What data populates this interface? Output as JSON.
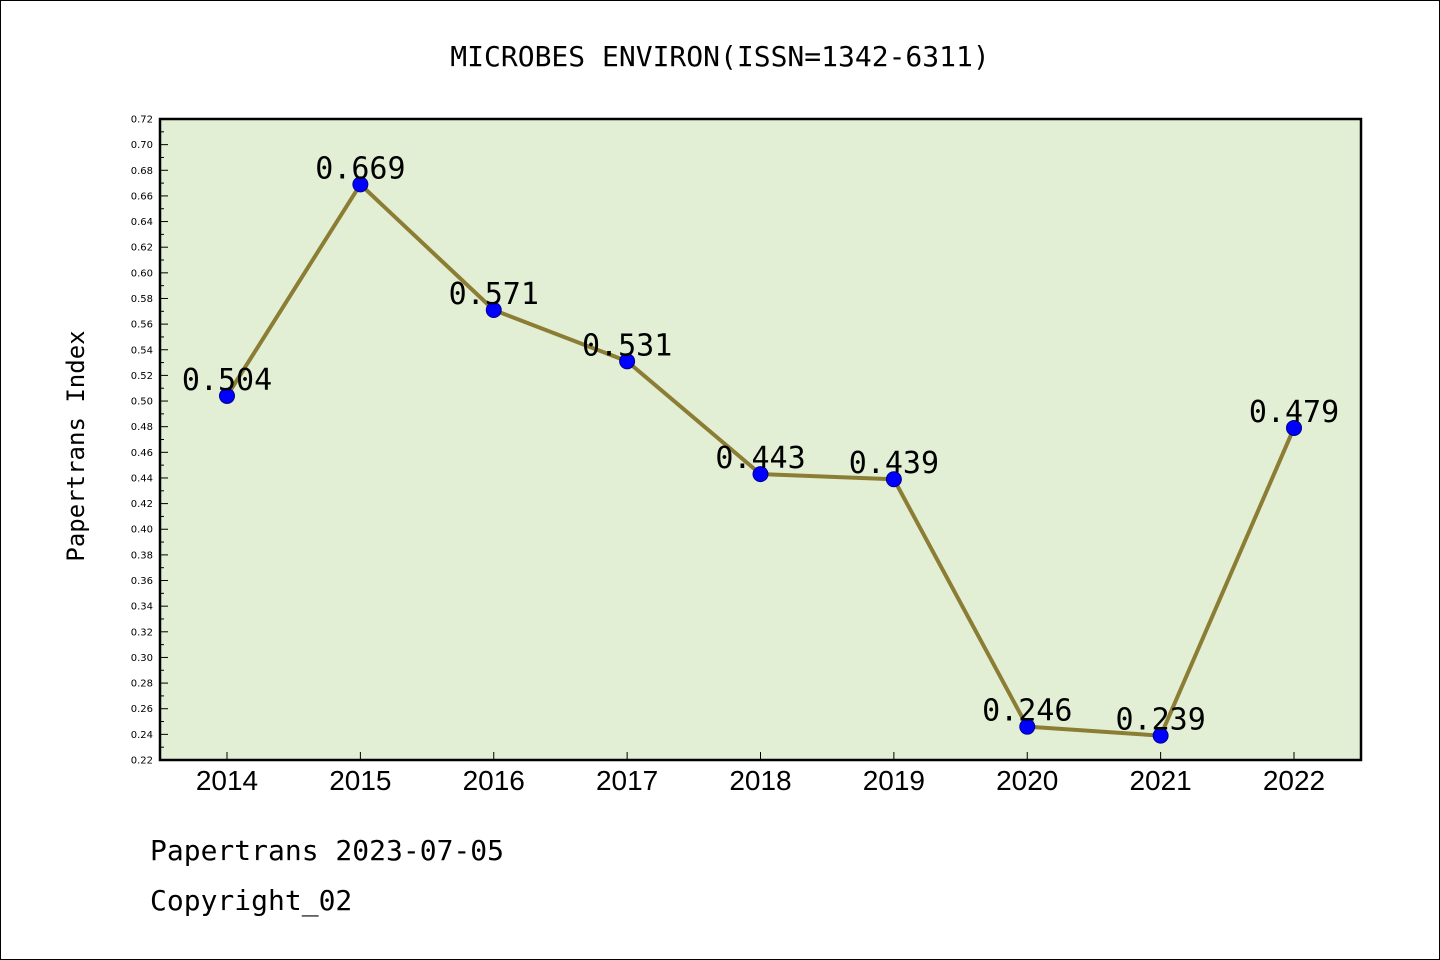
{
  "chart_data": {
    "type": "line",
    "title": "MICROBES ENVIRON(ISSN=1342-6311)",
    "ylabel": "Papertrans Index",
    "xlabel": "",
    "categories": [
      "2014",
      "2015",
      "2016",
      "2017",
      "2018",
      "2019",
      "2020",
      "2021",
      "2022"
    ],
    "series": [
      {
        "values": [
          0.504,
          0.669,
          0.571,
          0.531,
          0.443,
          0.439,
          0.246,
          0.239,
          0.479
        ]
      }
    ],
    "data_labels": [
      "0.504",
      "0.669",
      "0.571",
      "0.531",
      "0.443",
      "0.439",
      "0.246",
      "0.239",
      "0.479"
    ],
    "ylim": [
      0.22,
      0.72
    ],
    "yticks": [
      "0.22",
      "0.24",
      "0.26",
      "0.28",
      "0.30",
      "0.32",
      "0.34",
      "0.36",
      "0.38",
      "0.40",
      "0.42",
      "0.44",
      "0.46",
      "0.48",
      "0.50",
      "0.52",
      "0.54",
      "0.56",
      "0.58",
      "0.60",
      "0.62",
      "0.64",
      "0.66",
      "0.68",
      "0.70",
      "0.72"
    ],
    "grid": false,
    "colors": {
      "plot_background": "#e2efd5",
      "line": "#8b7d33",
      "marker": "#0000ff",
      "marker_edge": "#00008b"
    }
  },
  "footer": {
    "line1": "Papertrans 2023-07-05",
    "line2": "Copyright_02"
  }
}
